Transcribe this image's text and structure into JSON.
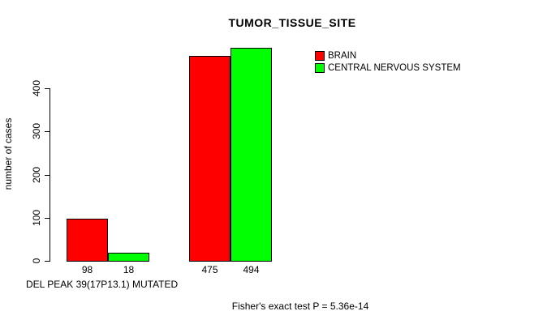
{
  "title": "TUMOR_TISSUE_SITE",
  "y_axis": {
    "label": "number of cases",
    "tick_labels": [
      "0",
      "100",
      "200",
      "300",
      "400"
    ]
  },
  "x_axis": {
    "label": "DEL PEAK 39(17P13.1) MUTATED"
  },
  "footer": "Fisher's exact test P = 5.36e-14",
  "legend": {
    "position": "top-right",
    "items": [
      {
        "label": "BRAIN",
        "color": "#ff0000"
      },
      {
        "label": "CENTRAL NERVOUS SYSTEM",
        "color": "#00ff00"
      }
    ]
  },
  "chart_data": {
    "type": "bar",
    "title": "TUMOR_TISSUE_SITE",
    "xlabel": "DEL PEAK 39(17P13.1) MUTATED",
    "ylabel": "number of cases",
    "categories": [
      "",
      ""
    ],
    "series": [
      {
        "name": "BRAIN",
        "color": "#ff0000",
        "values": [
          98,
          475
        ]
      },
      {
        "name": "CENTRAL NERVOUS SYSTEM",
        "color": "#00ff00",
        "values": [
          18,
          494
        ]
      }
    ],
    "bar_value_labels": [
      [
        98,
        18
      ],
      [
        475,
        494
      ]
    ],
    "yticks": [
      0,
      100,
      200,
      300,
      400
    ],
    "ylim": [
      0,
      494
    ],
    "grid": false,
    "legend_position": "top-right",
    "annotation": "Fisher's exact test P = 5.36e-14"
  }
}
